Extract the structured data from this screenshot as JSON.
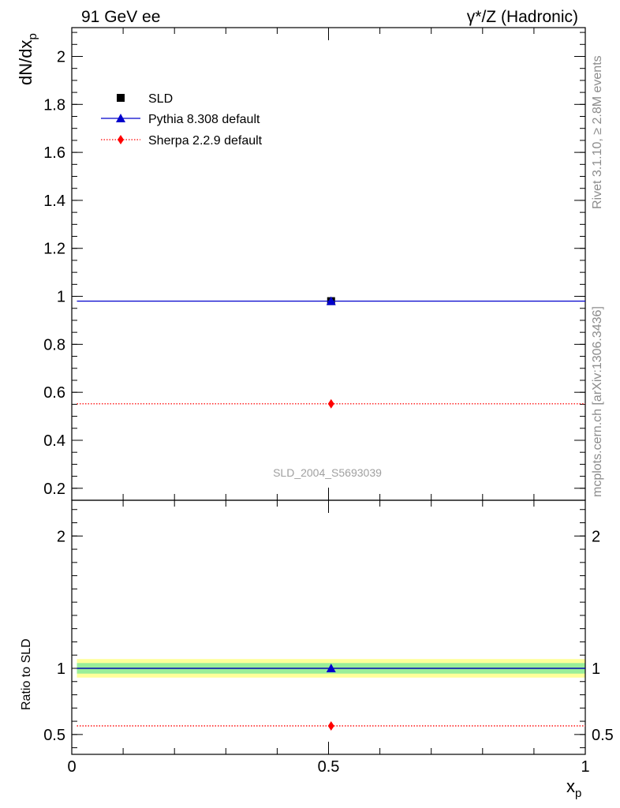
{
  "header": {
    "left": "91 GeV ee",
    "right": "γ*/Z (Hadronic)"
  },
  "side_text": {
    "rivet": "Rivet 3.1.10, ≥ 2.8M events",
    "mcplots": "mcplots.cern.ch [arXiv:1306.3436]"
  },
  "watermark": "SLD_2004_S5693039",
  "y_title": {
    "main": "dN/dx",
    "sub": "p"
  },
  "x_title": {
    "main": "x",
    "sub": "p"
  },
  "ratio_ylabel": "Ratio to SLD",
  "legend": [
    {
      "label": "SLD",
      "marker": "square",
      "color": "#000000",
      "line": "none"
    },
    {
      "label": "Pythia 8.308 default",
      "marker": "triangle",
      "color": "#0000cc",
      "line": "solid"
    },
    {
      "label": "Sherpa 2.2.9 default",
      "marker": "diamond",
      "color": "#ff0000",
      "line": "dotted"
    }
  ],
  "chart_data": [
    {
      "type": "scatter",
      "panel": "main",
      "ylabel": "dN/dx_p",
      "ylim": [
        0.15,
        2.12
      ],
      "xlim": [
        0,
        1
      ],
      "yticks": [
        {
          "value": 0.2,
          "label": "0.2"
        },
        {
          "value": 0.4,
          "label": "0.4"
        },
        {
          "value": 0.6,
          "label": "0.6"
        },
        {
          "value": 0.8,
          "label": "0.8"
        },
        {
          "value": 1.0,
          "label": "1"
        },
        {
          "value": 1.2,
          "label": "1.2"
        },
        {
          "value": 1.4,
          "label": "1.4"
        },
        {
          "value": 1.6,
          "label": "1.6"
        },
        {
          "value": 1.8,
          "label": "1.8"
        },
        {
          "value": 2.0,
          "label": "2"
        }
      ],
      "series": [
        {
          "name": "SLD",
          "x": [
            0.505
          ],
          "xerr": [
            [
              0.49,
              0.02
            ]
          ],
          "y": [
            0.98
          ],
          "color": "#000000",
          "marker": "square"
        },
        {
          "name": "Pythia 8.308 default",
          "x": [
            0.505
          ],
          "xrange": [
            [
              0.01,
              1.0
            ]
          ],
          "y": [
            0.98
          ],
          "color": "#0000cc",
          "marker": "triangle",
          "line": "solid"
        },
        {
          "name": "Sherpa 2.2.9 default",
          "x": [
            0.505
          ],
          "xrange": [
            [
              0.01,
              1.0
            ]
          ],
          "y": [
            0.552
          ],
          "color": "#ff0000",
          "marker": "diamond",
          "line": "dotted"
        }
      ]
    },
    {
      "type": "scatter",
      "panel": "ratio",
      "ylabel": "Ratio to SLD",
      "xlabel": "x_p",
      "ylim": [
        0.35,
        2.27
      ],
      "xlim": [
        0,
        1
      ],
      "xticks": [
        {
          "value": 0,
          "label": "0"
        },
        {
          "value": 0.5,
          "label": "0.5"
        },
        {
          "value": 1,
          "label": "1"
        }
      ],
      "yticks": [
        {
          "value": 0.5,
          "label": "0.5"
        },
        {
          "value": 1,
          "label": "1"
        },
        {
          "value": 2,
          "label": "2"
        }
      ],
      "bands": [
        {
          "range": [
            0.93,
            1.07
          ],
          "color": "#ffff99"
        },
        {
          "range": [
            0.96,
            1.04
          ],
          "color": "#99ee99"
        }
      ],
      "series": [
        {
          "name": "Pythia 8.308 default",
          "x": [
            0.505
          ],
          "xrange": [
            [
              0.01,
              1.0
            ]
          ],
          "y": [
            1.0
          ],
          "color": "#0000cc",
          "marker": "triangle",
          "line": "solid"
        },
        {
          "name": "Sherpa 2.2.9 default",
          "x": [
            0.505
          ],
          "xrange": [
            [
              0.01,
              1.0
            ]
          ],
          "y": [
            0.565
          ],
          "color": "#ff0000",
          "marker": "diamond",
          "line": "dotted"
        }
      ]
    }
  ]
}
